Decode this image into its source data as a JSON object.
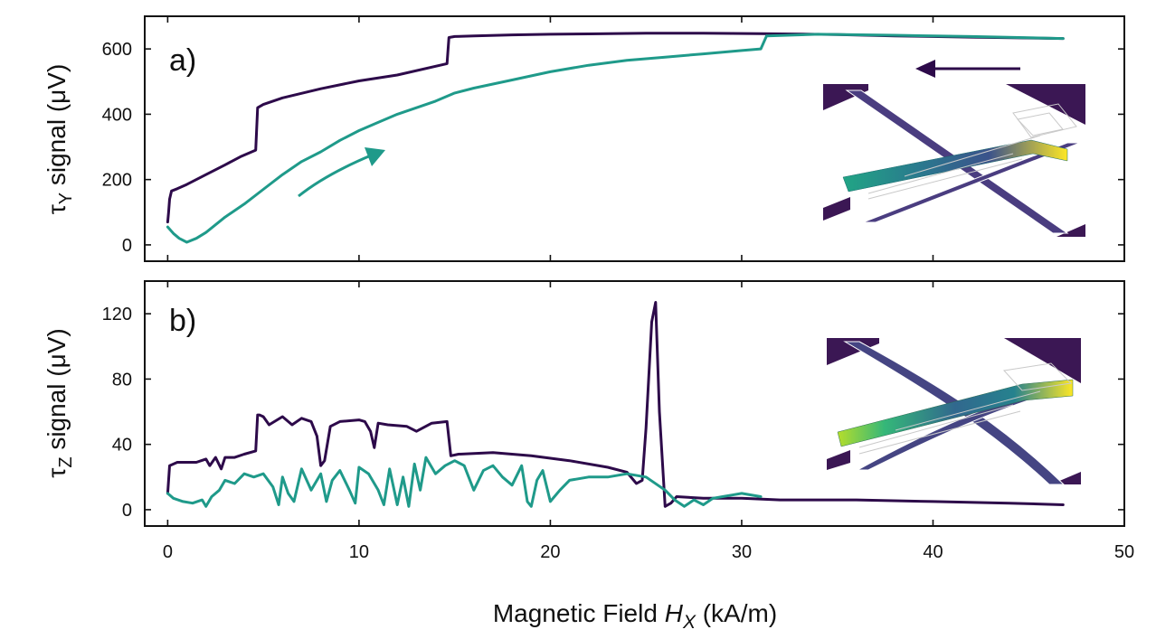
{
  "colors": {
    "sweep_down": "#2d0a4a",
    "sweep_up": "#1f9a8a",
    "axis": "#111111"
  },
  "xaxis": {
    "label_main": "Magnetic Field ",
    "label_var": "H",
    "label_sub": "X",
    "label_unit": " (kA/m)",
    "lim": [
      -1.2,
      50
    ],
    "ticks": [
      0,
      10,
      20,
      30,
      40,
      50
    ],
    "tick_labels": [
      "0",
      "10",
      "20",
      "30",
      "40",
      "50"
    ]
  },
  "annotations": {
    "arrow_up_direction": "right-up",
    "arrow_down_direction": "left",
    "inset_a": "cantilever-torque-magnetometer-simulation-inset",
    "inset_b": "cantilever-torque-magnetometer-simulation-inset"
  },
  "chart_data": [
    {
      "type": "line",
      "panel": "a)",
      "ylabel_tau": "τ",
      "ylabel_sub": "Y",
      "ylabel_rest": " signal (μV)",
      "ylim": [
        -50,
        700
      ],
      "yticks": [
        0,
        200,
        400,
        600
      ],
      "ytick_labels": [
        "0",
        "200",
        "400",
        "600"
      ],
      "series": [
        {
          "name": "sweep_down",
          "color_key": "sweep_down",
          "x": [
            46.8,
            42,
            38,
            35,
            31,
            28,
            25,
            22,
            20,
            18,
            16,
            15,
            14.7,
            14.6,
            12,
            10,
            8,
            6,
            5,
            4.7,
            4.6,
            3.8,
            3,
            2,
            1,
            0.5,
            0.2,
            0.1,
            0.05,
            0.0
          ],
          "y": [
            632,
            636,
            640,
            644,
            647,
            648,
            648,
            646,
            645,
            643,
            640,
            638,
            635,
            555,
            520,
            502,
            478,
            450,
            430,
            420,
            290,
            270,
            245,
            215,
            185,
            172,
            165,
            140,
            100,
            70
          ]
        },
        {
          "name": "sweep_up",
          "color_key": "sweep_up",
          "x": [
            0.0,
            0.3,
            0.6,
            1.0,
            1.5,
            2.0,
            3.0,
            4.0,
            5.0,
            6.0,
            7.0,
            8.0,
            9.0,
            10.0,
            11.0,
            12.0,
            13.0,
            14.0,
            15.0,
            16.0,
            18.0,
            20.0,
            22.0,
            24.0,
            26.0,
            28.0,
            30.0,
            31.0,
            31.3
          ],
          "y": [
            55,
            35,
            20,
            8,
            20,
            38,
            85,
            125,
            170,
            215,
            255,
            285,
            320,
            350,
            375,
            400,
            420,
            440,
            465,
            480,
            505,
            530,
            550,
            565,
            575,
            585,
            595,
            600,
            640
          ]
        },
        {
          "name": "sweep_up_tail",
          "color_key": "sweep_up",
          "x": [
            31.3,
            34,
            38,
            42,
            46.8
          ],
          "y": [
            640,
            645,
            642,
            638,
            632
          ]
        }
      ]
    },
    {
      "type": "line",
      "panel": "b)",
      "ylabel_tau": "τ",
      "ylabel_sub": "Z",
      "ylabel_rest": "  signal (μV)",
      "ylim": [
        -10,
        140
      ],
      "yticks": [
        0,
        40,
        80,
        120
      ],
      "ytick_labels": [
        "0",
        "40",
        "80",
        "120"
      ],
      "series": [
        {
          "name": "sweep_down",
          "color_key": "sweep_down",
          "x": [
            46.8,
            44,
            40,
            36,
            32,
            30,
            28,
            26.6,
            26.3,
            26.0,
            25.7,
            25.5,
            25.3,
            25.0,
            24.8,
            24.5,
            24.0,
            23.0,
            21.0,
            19.0,
            17.0,
            15.2,
            14.8,
            14.6,
            13.8,
            13.0,
            12.5,
            11.5,
            11.0,
            10.8,
            10.6,
            10.3,
            10.0,
            9.0,
            8.5,
            8.2,
            8.0,
            7.8,
            7.5,
            7.0,
            6.5,
            6.0,
            5.3,
            5.0,
            4.8,
            4.7,
            4.6,
            4.0,
            3.5,
            3.0,
            2.8,
            2.5,
            2.2,
            2.0,
            1.5,
            1.0,
            0.5,
            0.1,
            0.0
          ],
          "y": [
            3,
            4,
            5,
            6,
            6,
            7,
            7,
            8,
            4,
            2,
            60,
            127,
            115,
            50,
            18,
            16,
            23,
            26,
            30,
            33,
            35,
            34,
            33,
            54,
            53,
            48,
            51,
            52,
            53,
            38,
            48,
            54,
            55,
            54,
            51,
            30,
            27,
            45,
            54,
            56,
            52,
            57,
            52,
            57,
            58,
            58,
            36,
            34,
            32,
            32,
            25,
            32,
            27,
            31,
            29,
            29,
            29,
            27,
            10
          ]
        },
        {
          "name": "sweep_up",
          "color_key": "sweep_up",
          "x": [
            0.0,
            0.3,
            0.8,
            1.3,
            1.8,
            2.0,
            2.3,
            2.7,
            3.0,
            3.5,
            4.0,
            4.5,
            5.0,
            5.5,
            5.8,
            6.0,
            6.3,
            6.6,
            7.0,
            7.5,
            8.0,
            8.3,
            8.6,
            9.0,
            9.5,
            9.8,
            10.0,
            10.5,
            11.0,
            11.3,
            11.6,
            12.0,
            12.3,
            12.6,
            12.9,
            13.2,
            13.5,
            14.0,
            14.5,
            15.0,
            15.5,
            16.0,
            16.5,
            17.0,
            17.5,
            18.0,
            18.5,
            18.8,
            19.0,
            19.3,
            19.6,
            20.0,
            20.5,
            21.0,
            22.0,
            23.0,
            24.0,
            25.0,
            26.0,
            26.5,
            27.0,
            27.5,
            28.0,
            28.5,
            29.0,
            29.5,
            30.0,
            31.0
          ],
          "y": [
            10,
            7,
            5,
            4,
            6,
            2,
            8,
            12,
            18,
            16,
            22,
            20,
            22,
            14,
            3,
            20,
            10,
            5,
            25,
            12,
            22,
            5,
            18,
            24,
            12,
            4,
            26,
            22,
            12,
            3,
            25,
            3,
            20,
            2,
            28,
            12,
            32,
            22,
            27,
            30,
            27,
            12,
            24,
            27,
            20,
            15,
            27,
            5,
            2,
            18,
            24,
            5,
            12,
            18,
            20,
            20,
            22,
            20,
            12,
            6,
            2,
            6,
            3,
            7,
            8,
            9,
            10,
            8
          ]
        }
      ]
    }
  ]
}
